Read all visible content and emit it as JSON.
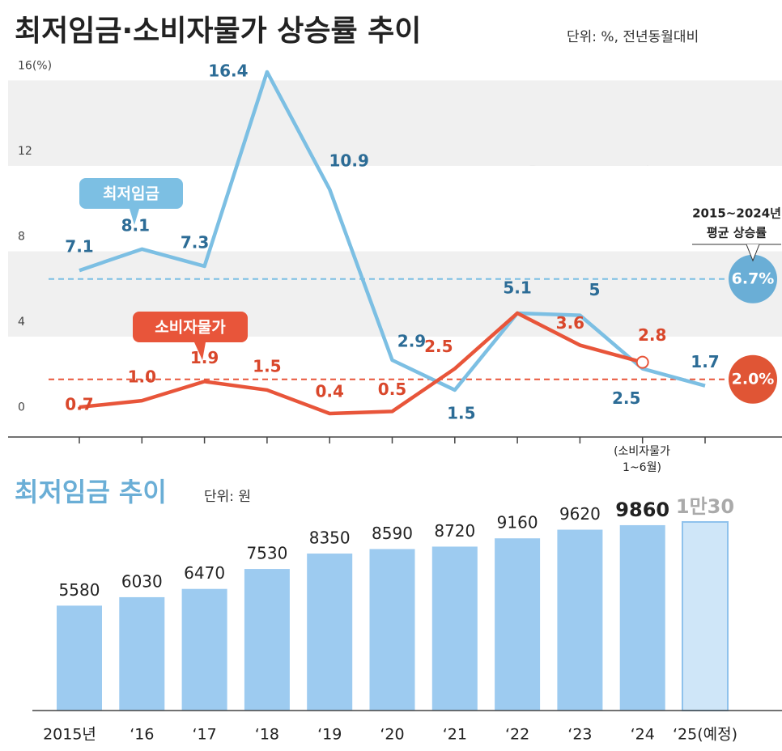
{
  "title": "최저임금·소비자물가 상승률 추이",
  "subtitle": "단위: %, 전년동월대비",
  "chart_data": [
    {
      "type": "line",
      "categories": [
        null,
        null,
        null,
        null,
        null,
        null,
        null,
        null,
        null,
        null,
        null
      ],
      "ylim": [
        -0.7,
        17
      ],
      "yticks": [
        0,
        4,
        8,
        12,
        {
          "value": 16,
          "label": "16(%)"
        }
      ],
      "bands": true,
      "series": [
        {
          "name": "최저임금",
          "color": "#7cbfe3",
          "label_color": "#2c6c96",
          "values": [
            7.1,
            8.1,
            7.3,
            16.4,
            10.9,
            2.9,
            1.5,
            5.1,
            5.0,
            2.5,
            1.7
          ],
          "average": {
            "value": 6.7,
            "label": "6.7%"
          }
        },
        {
          "name": "소비자물가",
          "color": "#e8553a",
          "label_color": "#d9472b",
          "values": [
            0.7,
            1.0,
            1.9,
            1.5,
            0.4,
            0.5,
            2.5,
            5.1,
            3.6,
            2.8,
            null
          ],
          "value_labels": [
            "0.7",
            "1.0",
            "1.9",
            "1.5",
            "0.4",
            "0.5",
            "2.5",
            null,
            "3.6",
            "2.8",
            null
          ],
          "average": {
            "value": 2.0,
            "label": "2.0%"
          }
        }
      ],
      "average_title": "2015~2024년",
      "average_subtitle": "평균 상승률",
      "note": "(소비자물가",
      "note2": "1~6월)"
    },
    {
      "type": "bar",
      "title": "최저임금 추이",
      "subtitle": "단위: 원",
      "categories": [
        "2015년",
        "‘16",
        "‘17",
        "‘18",
        "‘19",
        "‘20",
        "‘21",
        "‘22",
        "‘23",
        "‘24",
        "‘25(예정)"
      ],
      "values": [
        5580,
        6030,
        6470,
        7530,
        8350,
        8590,
        8720,
        9160,
        9620,
        9860,
        10030
      ],
      "value_labels": [
        "5580",
        "6030",
        "6470",
        "7530",
        "8350",
        "8590",
        "8720",
        "9160",
        "9620",
        "9860",
        "1만30"
      ],
      "color": "#9dcbf0",
      "highlight_color": "#cfe6f8"
    }
  ]
}
